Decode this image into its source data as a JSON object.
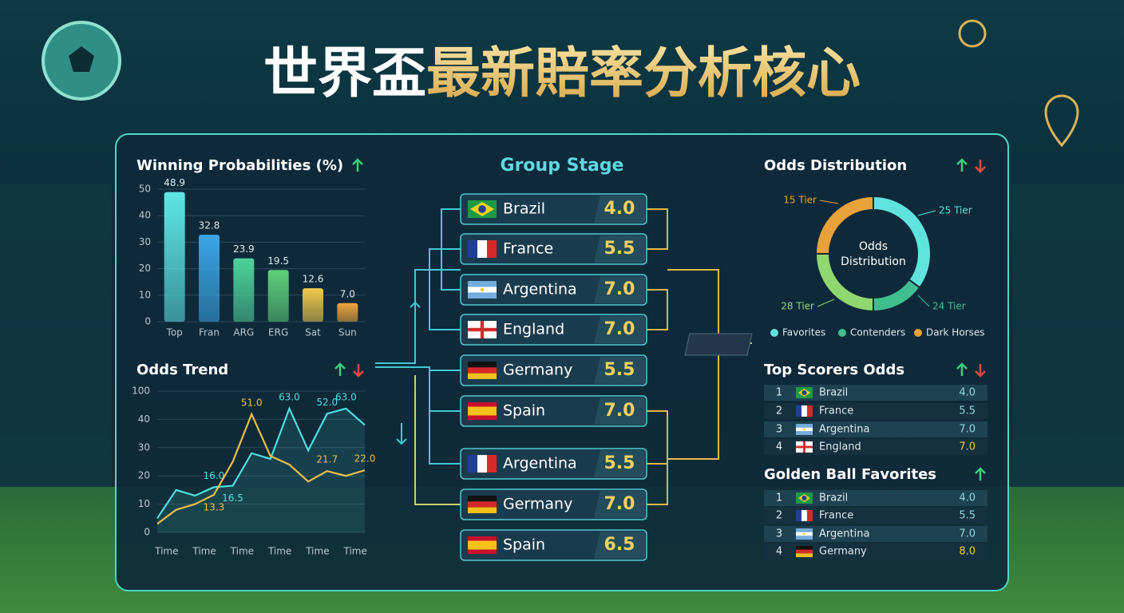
{
  "title": [
    "世界盃",
    "最新賠率分析核心"
  ],
  "chart_data": [
    {
      "type": "bar",
      "title": "Winning Probabilities (%)",
      "categories": [
        "Top",
        "Fran",
        "ARG",
        "ERG",
        "Sat",
        "Sun"
      ],
      "values": [
        48.9,
        32.8,
        23.9,
        19.5,
        12.6,
        7.0
      ],
      "value_labels": [
        "48.9",
        "32.8",
        "23.9",
        "19.5",
        "12.6",
        "7.0"
      ],
      "colors": [
        "#5ee6e6",
        "#3aa6e8",
        "#4fd39a",
        "#5fd07a",
        "#f2c94c",
        "#f0a43a"
      ],
      "ylim": [
        0,
        50
      ],
      "yticks": [
        0,
        10,
        20,
        30,
        40,
        50
      ],
      "grid": true
    },
    {
      "type": "line",
      "title": "Odds Trend",
      "x": [
        -0.25,
        0.25,
        0.75,
        1.25,
        1.75,
        2.25,
        2.75,
        3.25,
        3.75,
        4.25,
        4.75,
        5.25
      ],
      "xlim": [
        -0.25,
        5.25
      ],
      "xticks": [
        {
          "value": 0,
          "label": "Time"
        },
        {
          "value": 1,
          "label": "Time"
        },
        {
          "value": 2,
          "label": "Time"
        },
        {
          "value": 3,
          "label": "Time"
        },
        {
          "value": 4,
          "label": "Time"
        },
        {
          "value": 5,
          "label": "Time"
        }
      ],
      "ylim": [
        0,
        100
      ],
      "yticks": [
        0,
        10,
        20,
        30,
        40,
        100
      ],
      "grid": true,
      "series": [
        {
          "color": "#4fe0e0",
          "values": [
            5,
            15,
            13,
            16.0,
            16.5,
            28,
            26,
            63.0,
            29,
            52.0,
            63.0,
            38
          ],
          "value_labels": [
            null,
            null,
            null,
            "16.0",
            "16.5",
            null,
            null,
            "63.0",
            null,
            "52.0",
            "63.0",
            null
          ]
        },
        {
          "color": "#e9c04a",
          "values": [
            3,
            8,
            10,
            13.3,
            25,
            51.0,
            27,
            24,
            18,
            21.7,
            20,
            22.0
          ],
          "value_labels": [
            null,
            null,
            null,
            "13.3",
            null,
            "51.0",
            null,
            null,
            null,
            "21.7",
            null,
            "22.0"
          ]
        }
      ]
    },
    {
      "type": "pie",
      "title": "Odds Distribution",
      "center_label": [
        "Odds",
        "Distribution"
      ],
      "categories": [
        "25 Tier",
        "24 Tier",
        "28 Tier",
        "15 Tier"
      ],
      "values": [
        35,
        15,
        25,
        25
      ],
      "colors": [
        "#5fe3dc",
        "#3fbf8f",
        "#8fd86f",
        "#e9a23b"
      ],
      "legend": [
        {
          "name": "Favorites",
          "color": "#5fe3dc"
        },
        {
          "name": "Contenders",
          "color": "#3fbf8f"
        },
        {
          "name": "Dark Horses",
          "color": "#e9a23b"
        }
      ]
    }
  ],
  "bracket": {
    "title": "Group Stage",
    "teams": [
      {
        "name": "Brazil",
        "odds": "4.0"
      },
      {
        "name": "France",
        "odds": "5.5"
      },
      {
        "name": "Argentina",
        "odds": "7.0"
      },
      {
        "name": "England",
        "odds": "7.0"
      },
      {
        "name": "Germany",
        "odds": "5.5"
      },
      {
        "name": "Spain",
        "odds": "7.0"
      },
      {
        "name": "Argentina",
        "odds": "5.5"
      },
      {
        "name": "Germany",
        "odds": "7.0"
      },
      {
        "name": "Spain",
        "odds": "6.5"
      }
    ]
  },
  "top_scorers": {
    "title": "Top Scorers Odds",
    "rows": [
      [
        1,
        "Brazil",
        "4.0"
      ],
      [
        2,
        "France",
        "5.5"
      ],
      [
        3,
        "Argentina",
        "7.0"
      ],
      [
        4,
        "England",
        "7.0"
      ]
    ]
  },
  "golden_ball": {
    "title": "Golden Ball Favorites",
    "rows": [
      [
        1,
        "Brazil",
        "4.0"
      ],
      [
        2,
        "France",
        "5.5"
      ],
      [
        3,
        "Argentina",
        "7.0"
      ],
      [
        4,
        "Germany",
        "8.0"
      ]
    ]
  }
}
